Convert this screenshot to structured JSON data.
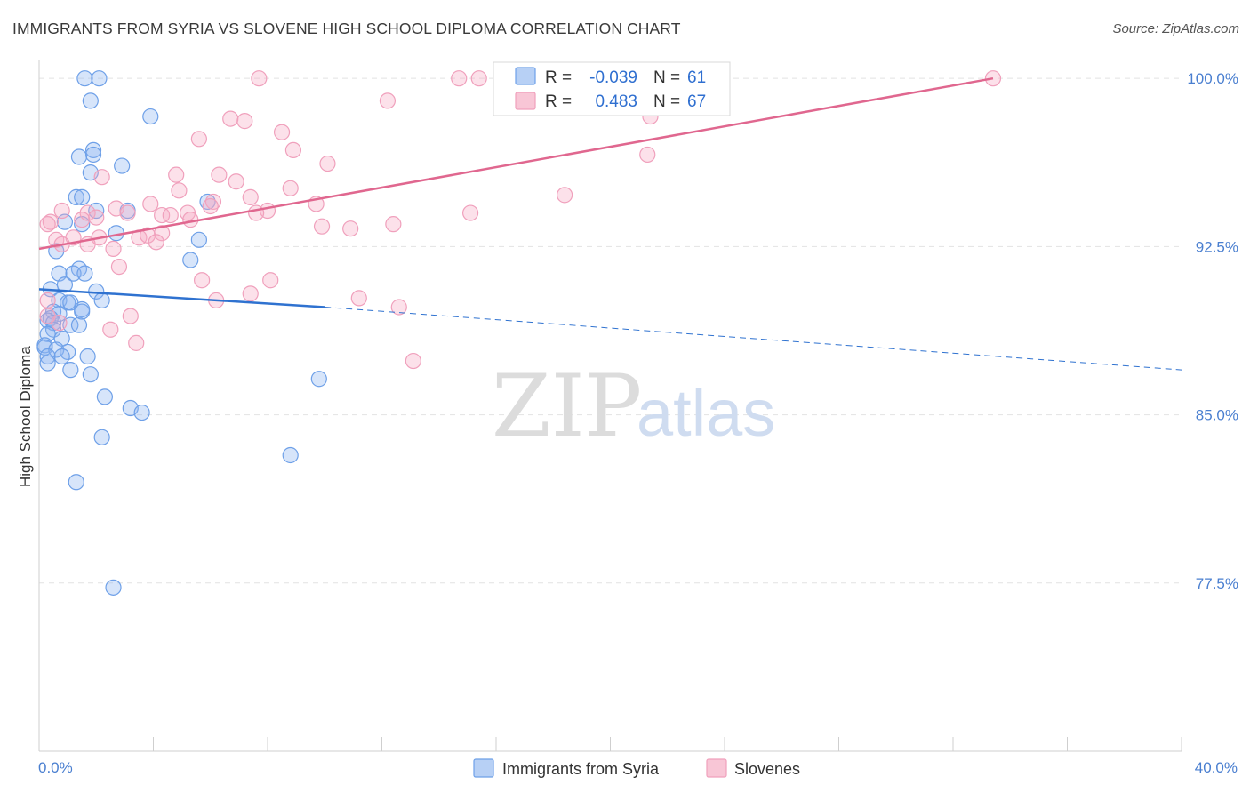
{
  "title": "IMMIGRANTS FROM SYRIA VS SLOVENE HIGH SCHOOL DIPLOMA CORRELATION CHART",
  "source": "Source: ZipAtlas.com",
  "watermark": {
    "zip": "ZIP",
    "atlas": "atlas"
  },
  "colors": {
    "syria": "#6ea0e8",
    "syria_line": "#2f72d0",
    "slovenes": "#f0a0bc",
    "slovenes_line": "#e0678f",
    "tick_text": "#4a7fd0"
  },
  "legend": {
    "r_label": "R =",
    "n_label": "N =",
    "syria": {
      "r": "-0.039",
      "n": "61"
    },
    "slovenes": {
      "r": "0.483",
      "n": "67"
    }
  },
  "chart_data": {
    "type": "scatter",
    "title": "IMMIGRANTS FROM SYRIA VS SLOVENE HIGH SCHOOL DIPLOMA CORRELATION CHART",
    "xlabel": "",
    "ylabel": "High School Diploma",
    "xlim": [
      0,
      40
    ],
    "ylim": [
      70.0,
      100.8
    ],
    "x_tick_labels": [
      "0.0%",
      "40.0%"
    ],
    "y_ticks": [
      77.5,
      85.0,
      92.5,
      100.0
    ],
    "y_tick_labels": [
      "77.5%",
      "85.0%",
      "92.5%",
      "100.0%"
    ],
    "grid": true,
    "legend_position": "top-center",
    "series": [
      {
        "name": "Immigrants from Syria",
        "r": -0.039,
        "n": 61,
        "trend": {
          "x0": 0,
          "y0": 90.6,
          "x1": 10,
          "y1": 89.8,
          "dashed_to_x": 40,
          "dashed_to_y": 87.0
        },
        "points": [
          [
            1.6,
            100.0
          ],
          [
            2.1,
            100.0
          ],
          [
            1.8,
            99.0
          ],
          [
            3.9,
            98.3
          ],
          [
            1.9,
            96.8
          ],
          [
            1.9,
            96.6
          ],
          [
            1.4,
            96.5
          ],
          [
            2.9,
            96.1
          ],
          [
            1.8,
            95.8
          ],
          [
            1.3,
            94.7
          ],
          [
            1.5,
            94.7
          ],
          [
            2.0,
            94.1
          ],
          [
            3.1,
            94.1
          ],
          [
            5.9,
            94.5
          ],
          [
            0.9,
            93.6
          ],
          [
            1.5,
            93.5
          ],
          [
            2.7,
            93.1
          ],
          [
            5.6,
            92.8
          ],
          [
            0.6,
            92.3
          ],
          [
            5.3,
            91.9
          ],
          [
            1.4,
            91.5
          ],
          [
            0.7,
            91.3
          ],
          [
            1.2,
            91.3
          ],
          [
            1.6,
            91.3
          ],
          [
            0.9,
            90.8
          ],
          [
            0.4,
            90.6
          ],
          [
            2.0,
            90.5
          ],
          [
            0.7,
            90.1
          ],
          [
            1.0,
            90.0
          ],
          [
            1.1,
            90.0
          ],
          [
            2.2,
            90.1
          ],
          [
            1.5,
            89.7
          ],
          [
            0.5,
            89.6
          ],
          [
            0.7,
            89.5
          ],
          [
            0.4,
            89.3
          ],
          [
            0.3,
            89.2
          ],
          [
            0.5,
            89.1
          ],
          [
            1.1,
            89.0
          ],
          [
            1.4,
            89.0
          ],
          [
            0.5,
            88.8
          ],
          [
            0.3,
            88.6
          ],
          [
            0.8,
            88.4
          ],
          [
            0.2,
            88.1
          ],
          [
            0.2,
            88.0
          ],
          [
            0.6,
            87.9
          ],
          [
            1.0,
            87.8
          ],
          [
            0.3,
            87.6
          ],
          [
            0.8,
            87.6
          ],
          [
            1.7,
            87.6
          ],
          [
            1.1,
            87.0
          ],
          [
            1.8,
            86.8
          ],
          [
            0.3,
            87.3
          ],
          [
            9.8,
            86.6
          ],
          [
            2.3,
            85.8
          ],
          [
            3.2,
            85.3
          ],
          [
            3.6,
            85.1
          ],
          [
            2.2,
            84.0
          ],
          [
            8.8,
            83.2
          ],
          [
            1.3,
            82.0
          ],
          [
            2.6,
            77.3
          ],
          [
            1.5,
            89.6
          ]
        ]
      },
      {
        "name": "Slovenes",
        "r": 0.483,
        "n": 67,
        "trend": {
          "x0": 0,
          "y0": 92.4,
          "x1": 33.4,
          "y1": 100.0
        },
        "points": [
          [
            7.7,
            100.0
          ],
          [
            14.7,
            100.0
          ],
          [
            15.4,
            100.0
          ],
          [
            33.4,
            100.0
          ],
          [
            12.2,
            99.0
          ],
          [
            21.4,
            98.3
          ],
          [
            6.7,
            98.2
          ],
          [
            7.2,
            98.1
          ],
          [
            8.5,
            97.6
          ],
          [
            5.6,
            97.3
          ],
          [
            8.9,
            96.8
          ],
          [
            10.1,
            96.2
          ],
          [
            21.3,
            96.6
          ],
          [
            2.2,
            95.6
          ],
          [
            4.8,
            95.7
          ],
          [
            6.3,
            95.7
          ],
          [
            6.9,
            95.4
          ],
          [
            8.8,
            95.1
          ],
          [
            4.9,
            95.0
          ],
          [
            18.4,
            94.8
          ],
          [
            7.4,
            94.7
          ],
          [
            3.9,
            94.4
          ],
          [
            6.1,
            94.5
          ],
          [
            9.7,
            94.4
          ],
          [
            6.0,
            94.3
          ],
          [
            8.0,
            94.1
          ],
          [
            2.7,
            94.2
          ],
          [
            3.1,
            94.0
          ],
          [
            5.2,
            94.0
          ],
          [
            7.6,
            94.0
          ],
          [
            1.7,
            94.0
          ],
          [
            0.8,
            94.1
          ],
          [
            15.1,
            94.0
          ],
          [
            4.3,
            93.9
          ],
          [
            4.6,
            93.9
          ],
          [
            5.3,
            93.7
          ],
          [
            0.4,
            93.6
          ],
          [
            1.5,
            93.7
          ],
          [
            2.0,
            93.8
          ],
          [
            12.4,
            93.5
          ],
          [
            9.9,
            93.4
          ],
          [
            10.9,
            93.3
          ],
          [
            4.3,
            93.1
          ],
          [
            3.5,
            92.9
          ],
          [
            3.8,
            93.0
          ],
          [
            1.2,
            92.9
          ],
          [
            2.1,
            92.9
          ],
          [
            4.1,
            92.7
          ],
          [
            0.6,
            92.8
          ],
          [
            0.8,
            92.6
          ],
          [
            1.7,
            92.6
          ],
          [
            2.6,
            92.4
          ],
          [
            2.8,
            91.6
          ],
          [
            5.7,
            91.0
          ],
          [
            8.1,
            91.0
          ],
          [
            11.2,
            90.2
          ],
          [
            7.4,
            90.4
          ],
          [
            6.2,
            90.1
          ],
          [
            12.6,
            89.8
          ],
          [
            3.2,
            89.4
          ],
          [
            0.3,
            89.4
          ],
          [
            0.3,
            90.1
          ],
          [
            0.7,
            89.1
          ],
          [
            2.5,
            88.8
          ],
          [
            3.4,
            88.2
          ],
          [
            13.1,
            87.4
          ],
          [
            0.3,
            93.5
          ]
        ]
      }
    ]
  },
  "bottom_legend": [
    "Immigrants from Syria",
    "Slovenes"
  ]
}
